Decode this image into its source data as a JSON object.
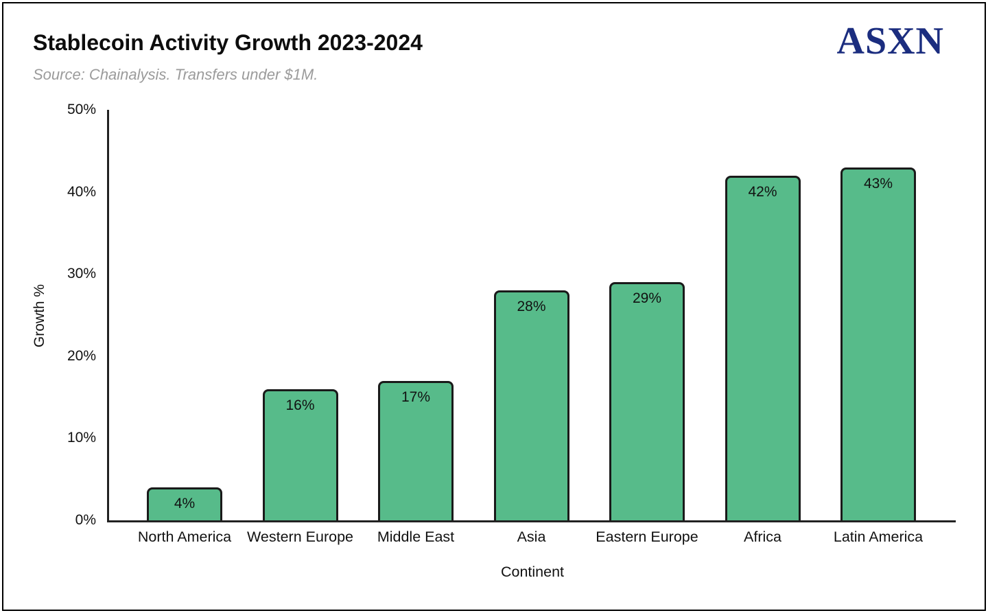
{
  "header": {
    "title": "Stablecoin Activity Growth 2023-2024",
    "subtitle": "Source: Chainalysis. Transfers under $1M.",
    "logo_text": "ASXN"
  },
  "chart_data": {
    "type": "bar",
    "title": "Stablecoin Activity Growth 2023-2024",
    "subtitle": "Source: Chainalysis. Transfers under $1M.",
    "categories": [
      "North America",
      "Western Europe",
      "Middle East",
      "Asia",
      "Eastern Europe",
      "Africa",
      "Latin America"
    ],
    "values": [
      4,
      16,
      17,
      28,
      29,
      42,
      43
    ],
    "value_labels": [
      "4%",
      "16%",
      "17%",
      "28%",
      "29%",
      "42%",
      "43%"
    ],
    "xlabel": "Continent",
    "ylabel": "Growth %",
    "ylim": [
      0,
      50
    ],
    "yticks": [
      0,
      10,
      20,
      30,
      40,
      50
    ],
    "ytick_labels": [
      "0%",
      "10%",
      "20%",
      "30%",
      "40%",
      "50%"
    ],
    "grid": false,
    "legend": "none"
  },
  "colors": {
    "bar_fill": "#57bb8a",
    "bar_border": "#1a1a1a",
    "axis": "#222222",
    "title_text": "#0d0d0d",
    "subtitle_text": "#9b9b9b",
    "logo_navy": "#1b2d7f",
    "background": "#ffffff"
  }
}
